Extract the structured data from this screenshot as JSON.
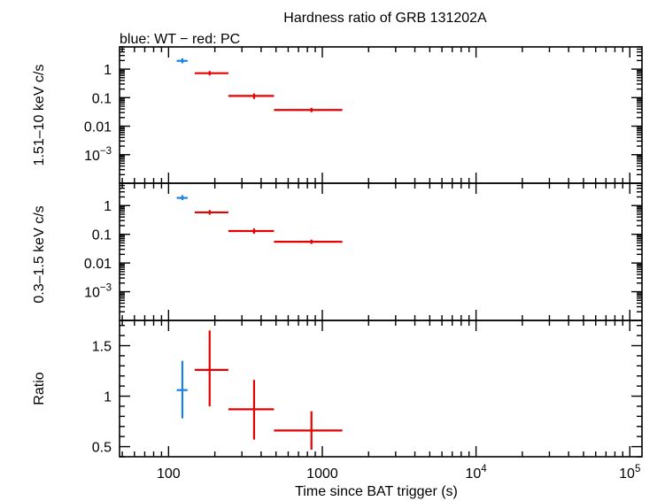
{
  "title": "Hardness ratio of GRB 131202A",
  "subtitle": "blue: WT − red: PC",
  "colors": {
    "wt": "#1a7fe6",
    "pc": "#e60000",
    "axis": "#000000"
  },
  "chart_data": [
    {
      "type": "scatter",
      "panel": "hard",
      "ylabel": "1.51–10 keV c/s",
      "yscale": "log",
      "ylim": [
        0.0001,
        6
      ],
      "xscale": "log",
      "xlim": [
        48,
        120000
      ],
      "yticks": [
        {
          "value": 1,
          "label": "1"
        },
        {
          "value": 0.1,
          "label": "0.1"
        },
        {
          "value": 0.01,
          "label": "0.01"
        },
        {
          "value": 0.001,
          "label": "10",
          "sup": "−3"
        }
      ],
      "series": [
        {
          "mode": "WT",
          "points": [
            {
              "x": 123,
              "xlo": 113,
              "xhi": 133,
              "y": 1.95,
              "ylo": 1.6,
              "yhi": 2.4
            }
          ]
        },
        {
          "mode": "PC",
          "points": [
            {
              "x": 185,
              "xlo": 148,
              "xhi": 245,
              "y": 0.72,
              "ylo": 0.6,
              "yhi": 0.86
            },
            {
              "x": 360,
              "xlo": 245,
              "xhi": 485,
              "y": 0.115,
              "ylo": 0.09,
              "yhi": 0.14
            },
            {
              "x": 850,
              "xlo": 485,
              "xhi": 1350,
              "y": 0.037,
              "ylo": 0.031,
              "yhi": 0.044
            }
          ]
        }
      ]
    },
    {
      "type": "scatter",
      "panel": "soft",
      "ylabel": "0.3–1.5 keV c/s",
      "yscale": "log",
      "ylim": [
        0.0001,
        6
      ],
      "xscale": "log",
      "xlim": [
        48,
        120000
      ],
      "yticks": [
        {
          "value": 1,
          "label": "1"
        },
        {
          "value": 0.1,
          "label": "0.1"
        },
        {
          "value": 0.01,
          "label": "0.01"
        },
        {
          "value": 0.001,
          "label": "10",
          "sup": "−3"
        }
      ],
      "series": [
        {
          "mode": "WT",
          "points": [
            {
              "x": 123,
              "xlo": 113,
              "xhi": 133,
              "y": 1.85,
              "ylo": 1.55,
              "yhi": 2.3
            }
          ]
        },
        {
          "mode": "PC",
          "points": [
            {
              "x": 185,
              "xlo": 148,
              "xhi": 245,
              "y": 0.58,
              "ylo": 0.48,
              "yhi": 0.7
            },
            {
              "x": 360,
              "xlo": 245,
              "xhi": 485,
              "y": 0.13,
              "ylo": 0.105,
              "yhi": 0.16
            },
            {
              "x": 850,
              "xlo": 485,
              "xhi": 1350,
              "y": 0.055,
              "ylo": 0.046,
              "yhi": 0.065
            }
          ]
        }
      ]
    },
    {
      "type": "scatter",
      "panel": "ratio",
      "ylabel": "Ratio",
      "yscale": "linear",
      "ylim": [
        0.4,
        1.75
      ],
      "xscale": "log",
      "xlim": [
        48,
        120000
      ],
      "xlabel": "Time since BAT trigger (s)",
      "yticks": [
        {
          "value": 1.5,
          "label": "1.5"
        },
        {
          "value": 1,
          "label": "1"
        },
        {
          "value": 0.5,
          "label": "0.5"
        }
      ],
      "xticks": [
        {
          "value": 100,
          "label": "100"
        },
        {
          "value": 1000,
          "label": "1000"
        },
        {
          "value": 10000,
          "label": "10",
          "sup": "4"
        },
        {
          "value": 100000,
          "label": "10",
          "sup": "5"
        }
      ],
      "series": [
        {
          "mode": "WT",
          "points": [
            {
              "x": 123,
              "xlo": 113,
              "xhi": 133,
              "y": 1.06,
              "ylo": 0.78,
              "yhi": 1.35
            }
          ]
        },
        {
          "mode": "PC",
          "points": [
            {
              "x": 185,
              "xlo": 148,
              "xhi": 245,
              "y": 1.26,
              "ylo": 0.9,
              "yhi": 1.65
            },
            {
              "x": 360,
              "xlo": 245,
              "xhi": 485,
              "y": 0.87,
              "ylo": 0.57,
              "yhi": 1.16
            },
            {
              "x": 850,
              "xlo": 485,
              "xhi": 1350,
              "y": 0.66,
              "ylo": 0.47,
              "yhi": 0.85
            }
          ]
        }
      ]
    }
  ]
}
